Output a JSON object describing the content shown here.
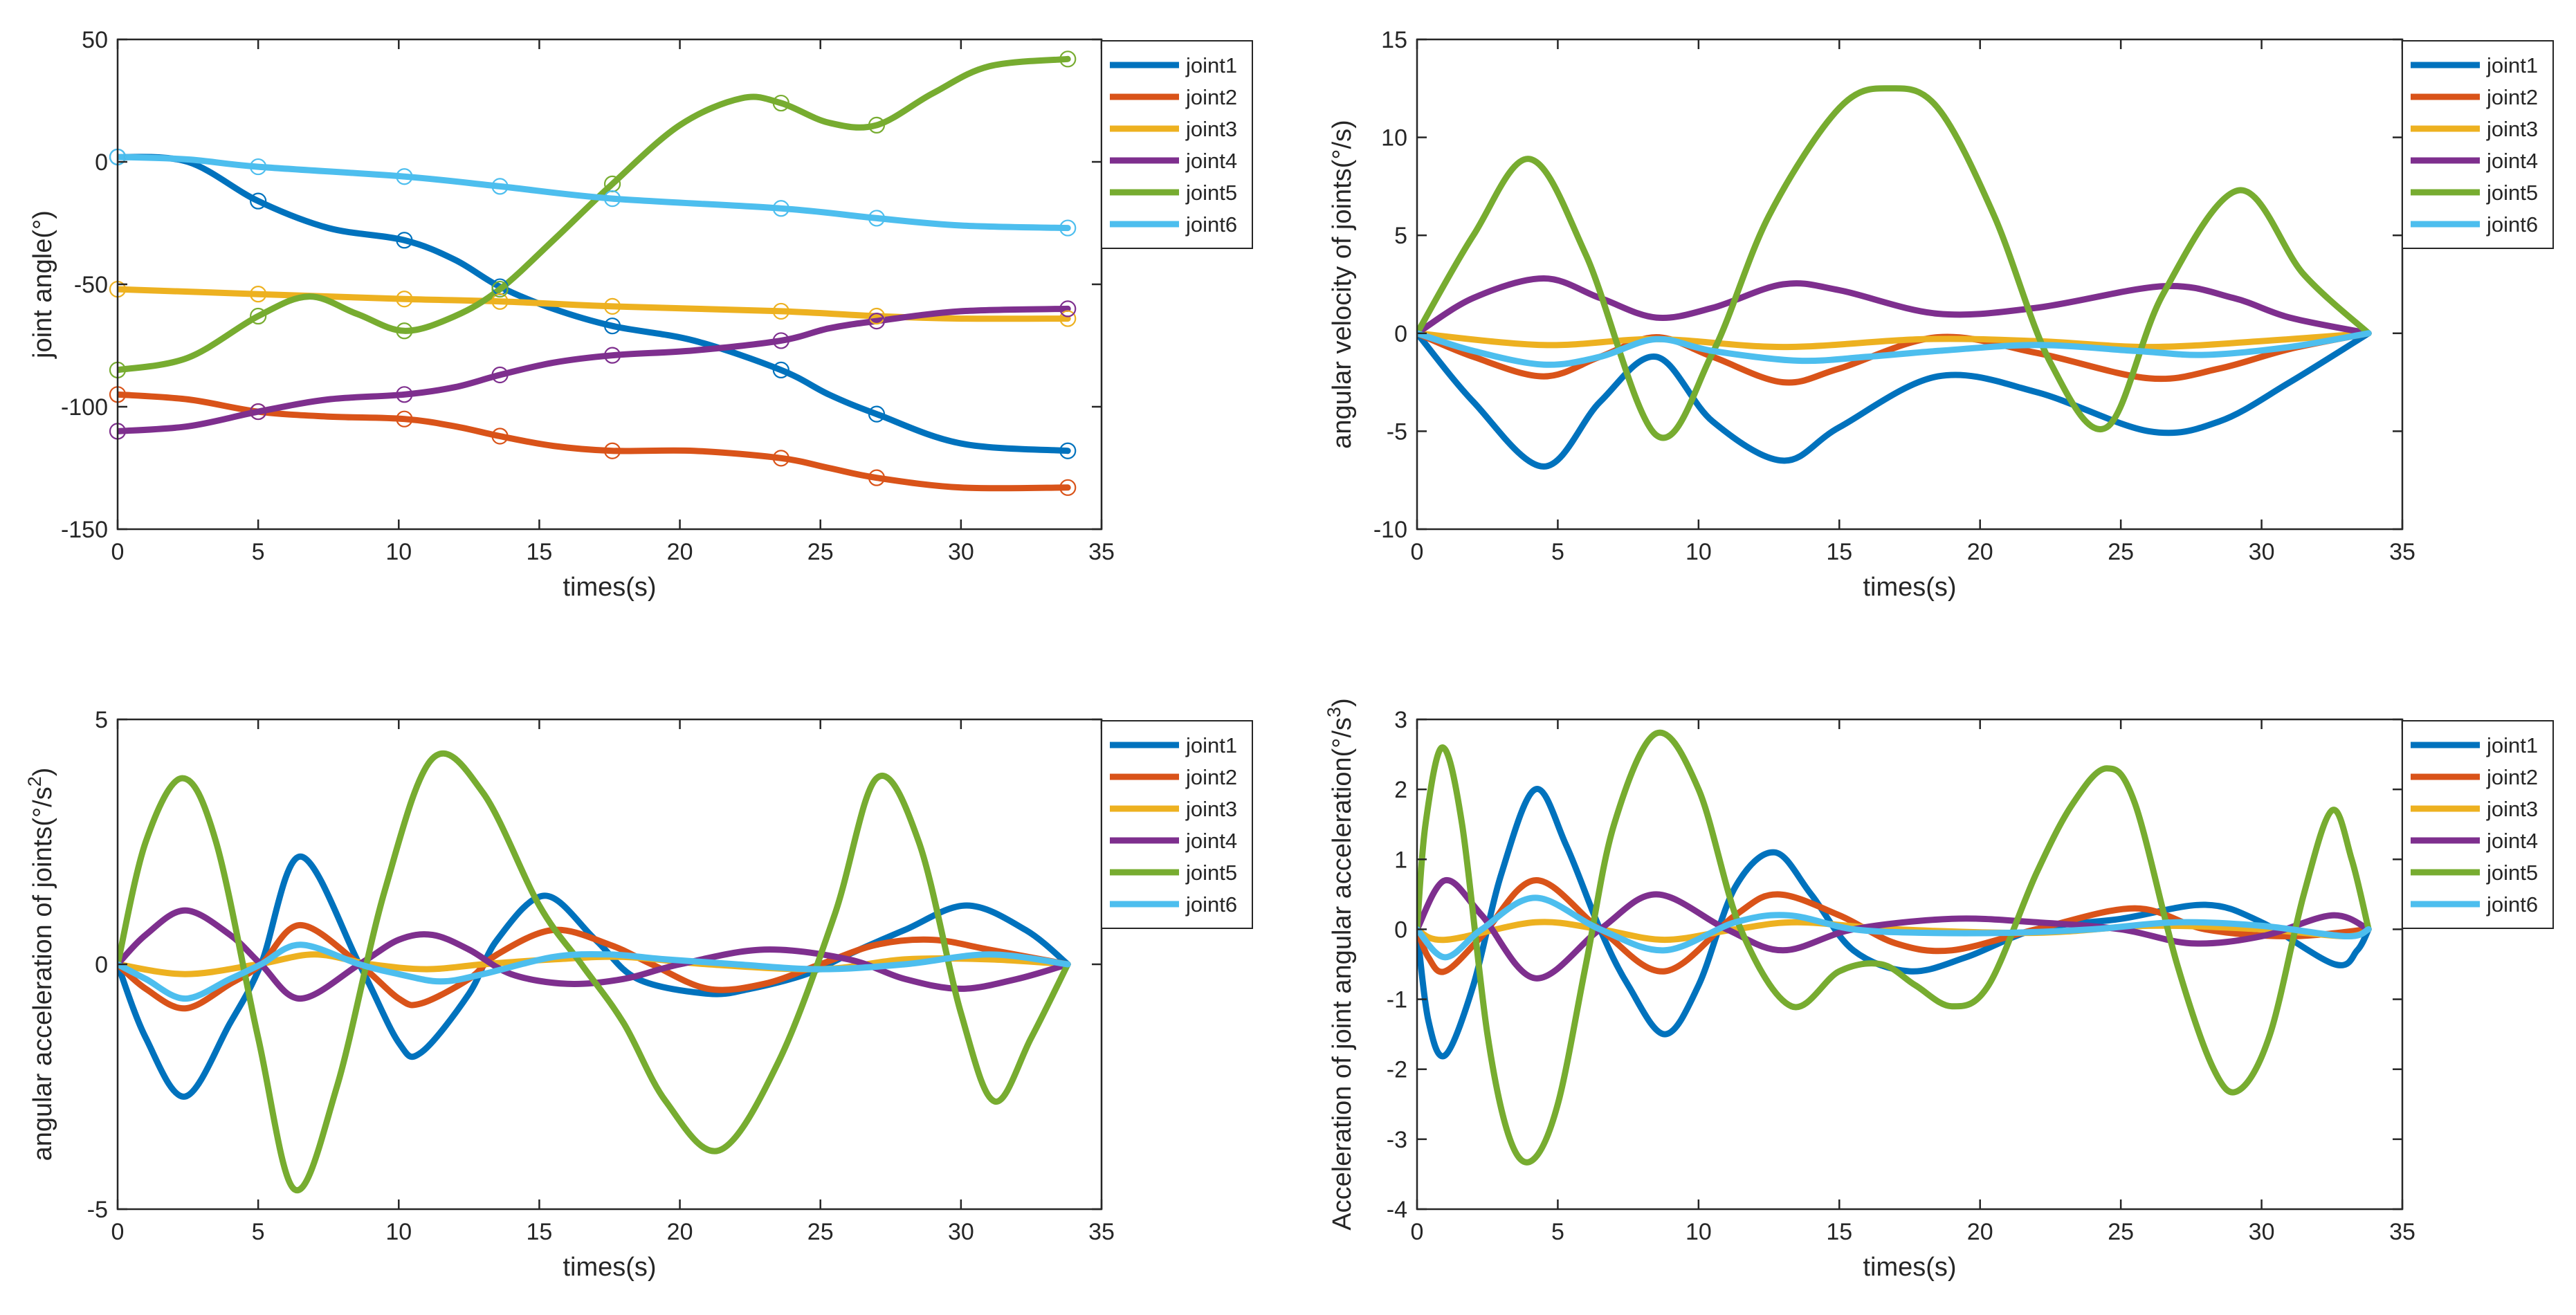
{
  "series_colors": {
    "joint1": "#0072BD",
    "joint2": "#D95319",
    "joint3": "#EDB120",
    "joint4": "#7E2F8E",
    "joint5": "#77AC30",
    "joint6": "#4DBEEE"
  },
  "chart_data": [
    {
      "type": "line",
      "xlabel": "times(s)",
      "ylabel": "joint angle(°)",
      "ylabel_sup": "",
      "ylabel_post": "",
      "xlim": [
        0,
        35
      ],
      "ylim": [
        -150,
        50
      ],
      "xticks": [
        0,
        5,
        10,
        15,
        20,
        25,
        30,
        35
      ],
      "yticks": [
        -150,
        -100,
        -50,
        0,
        50
      ],
      "legend": "top-right",
      "markers": "circle",
      "knots": [
        0,
        5,
        10.2,
        13.6,
        17.6,
        23.6,
        27,
        33.8
      ],
      "series": [
        {
          "name": "joint1",
          "x": [
            0,
            2.5,
            5,
            7.5,
            10.2,
            12,
            13.6,
            15.5,
            17.6,
            20.5,
            23.6,
            25.3,
            27,
            30,
            33.8
          ],
          "values": [
            2,
            0,
            -16,
            -27,
            -32,
            -40,
            -51,
            -60,
            -67,
            -73,
            -85,
            -95,
            -103,
            -115,
            -118
          ]
        },
        {
          "name": "joint2",
          "x": [
            0,
            2.5,
            5,
            7.5,
            10.2,
            12,
            13.6,
            15.5,
            17.6,
            20.5,
            23.6,
            25.3,
            27,
            30,
            33.8
          ],
          "values": [
            -95,
            -97,
            -102,
            -104,
            -105,
            -108,
            -112,
            -116,
            -118,
            -118,
            -121,
            -125,
            -129,
            -133,
            -133
          ]
        },
        {
          "name": "joint3",
          "x": [
            0,
            5,
            10.2,
            13.6,
            17.6,
            23.6,
            27,
            30,
            33.8
          ],
          "values": [
            -52,
            -54,
            -56,
            -57,
            -59,
            -61,
            -63,
            -64,
            -64
          ]
        },
        {
          "name": "joint4",
          "x": [
            0,
            2.5,
            5,
            7.5,
            10.2,
            12,
            13.6,
            15.5,
            17.6,
            20.5,
            23.6,
            25.3,
            27,
            30,
            33.8
          ],
          "values": [
            -110,
            -108,
            -102,
            -97,
            -95,
            -92,
            -87,
            -82,
            -79,
            -77,
            -73,
            -68,
            -65,
            -61,
            -60
          ]
        },
        {
          "name": "joint5",
          "x": [
            0,
            2.5,
            5,
            6.8,
            8.5,
            10.2,
            12,
            13.6,
            15.5,
            17.6,
            20,
            22.2,
            23.6,
            25.3,
            27,
            29,
            31,
            33.8
          ],
          "values": [
            -85,
            -80,
            -63,
            -55,
            -62,
            -69,
            -63,
            -52,
            -32,
            -9,
            15,
            26,
            24,
            16,
            15,
            28,
            39,
            42
          ]
        },
        {
          "name": "joint6",
          "x": [
            0,
            2.5,
            5,
            10.2,
            13.6,
            17.6,
            23.6,
            27,
            30,
            33.8
          ],
          "values": [
            2,
            1,
            -2,
            -6,
            -10,
            -15,
            -19,
            -23,
            -26,
            -27
          ]
        }
      ]
    },
    {
      "type": "line",
      "xlabel": "times(s)",
      "ylabel": "angular velocity of joints(°/s)",
      "ylabel_sup": "",
      "ylabel_post": "",
      "xlim": [
        0,
        35
      ],
      "ylim": [
        -10,
        15
      ],
      "xticks": [
        0,
        5,
        10,
        15,
        20,
        25,
        30,
        35
      ],
      "yticks": [
        -10,
        -5,
        0,
        5,
        10,
        15
      ],
      "legend": "top-right",
      "series": [
        {
          "name": "joint1",
          "x": [
            0,
            2,
            4.5,
            6.5,
            8.5,
            10.5,
            13,
            15,
            18.5,
            22,
            26,
            28.5,
            31,
            33.8
          ],
          "values": [
            0,
            -3.5,
            -6.8,
            -3.5,
            -1.2,
            -4.5,
            -6.5,
            -4.8,
            -2.2,
            -3,
            -5,
            -4.5,
            -2.5,
            0
          ]
        },
        {
          "name": "joint2",
          "x": [
            0,
            2,
            4.5,
            6.5,
            8.5,
            10.5,
            13,
            15,
            18.5,
            22,
            26,
            28.5,
            31,
            33.8
          ],
          "values": [
            0,
            -1.2,
            -2.2,
            -1.2,
            -0.2,
            -1.2,
            -2.5,
            -1.8,
            -0.2,
            -1,
            -2.3,
            -1.8,
            -0.8,
            0
          ]
        },
        {
          "name": "joint3",
          "x": [
            0,
            4.5,
            8.5,
            13,
            18,
            22,
            26,
            30,
            33.8
          ],
          "values": [
            0,
            -0.6,
            -0.3,
            -0.7,
            -0.3,
            -0.4,
            -0.7,
            -0.4,
            0
          ]
        },
        {
          "name": "joint4",
          "x": [
            0,
            2,
            4.5,
            6.5,
            8.5,
            10.5,
            13,
            15,
            18.5,
            22,
            26.5,
            29,
            31,
            33.8
          ],
          "values": [
            0,
            1.8,
            2.8,
            1.8,
            0.8,
            1.3,
            2.5,
            2.2,
            1,
            1.3,
            2.4,
            1.8,
            0.8,
            0
          ]
        },
        {
          "name": "joint5",
          "x": [
            0,
            2,
            4,
            6,
            8.5,
            10.5,
            12.5,
            15,
            16.8,
            18.5,
            20.5,
            22.5,
            24.5,
            26.5,
            29.2,
            31.5,
            33.8
          ],
          "values": [
            0,
            5,
            8.9,
            4,
            -5.2,
            -1,
            6,
            11.5,
            12.5,
            11.5,
            6,
            -1.5,
            -4.8,
            2,
            7.3,
            3,
            0
          ]
        },
        {
          "name": "joint6",
          "x": [
            0,
            2,
            4.5,
            6.5,
            8.5,
            10.5,
            13.5,
            16,
            18.5,
            22,
            25.5,
            28,
            31,
            33.8
          ],
          "values": [
            0,
            -0.9,
            -1.6,
            -1.2,
            -0.3,
            -0.9,
            -1.4,
            -1.2,
            -0.9,
            -0.6,
            -0.9,
            -1.1,
            -0.7,
            0
          ]
        }
      ]
    },
    {
      "type": "line",
      "xlabel": "times(s)",
      "ylabel": "angular acceleration of joints(°/s",
      "ylabel_sup": "2",
      "ylabel_post": ")",
      "xlim": [
        0,
        35
      ],
      "ylim": [
        -5,
        5
      ],
      "xticks": [
        0,
        5,
        10,
        15,
        20,
        25,
        30,
        35
      ],
      "yticks": [
        -5,
        0,
        5
      ],
      "legend": "top-right",
      "series": [
        {
          "name": "joint1",
          "x": [
            0,
            1,
            2.4,
            4,
            5.1,
            6.5,
            8.6,
            10,
            10.8,
            12.5,
            13.5,
            15.2,
            17,
            18.5,
            21,
            22.5,
            24.5,
            26,
            28,
            30.2,
            32.3,
            33.8
          ],
          "values": [
            0,
            -1.5,
            -2.7,
            -1.2,
            0,
            2.2,
            0,
            -1.6,
            -1.8,
            -0.6,
            0.5,
            1.4,
            0.5,
            -0.3,
            -0.6,
            -0.5,
            -0.2,
            0.2,
            0.7,
            1.2,
            0.7,
            0
          ]
        },
        {
          "name": "joint2",
          "x": [
            0,
            1,
            2.4,
            4,
            5.1,
            6.5,
            8.6,
            10,
            10.8,
            12.5,
            13.5,
            15.5,
            17.5,
            19,
            21,
            23,
            25,
            27,
            29,
            31,
            33.8
          ],
          "values": [
            0,
            -0.5,
            -0.9,
            -0.4,
            0,
            0.8,
            0,
            -0.7,
            -0.8,
            -0.3,
            0.2,
            0.7,
            0.4,
            0,
            -0.5,
            -0.4,
            0,
            0.4,
            0.5,
            0.3,
            0
          ]
        },
        {
          "name": "joint3",
          "x": [
            0,
            2.4,
            5,
            7,
            9,
            11,
            13,
            15.5,
            18,
            21,
            25,
            28,
            31,
            33.8
          ],
          "values": [
            0,
            -0.2,
            0,
            0.2,
            0,
            -0.1,
            0,
            0.1,
            0.15,
            0,
            -0.1,
            0.1,
            0.1,
            0
          ]
        },
        {
          "name": "joint4",
          "x": [
            0,
            1,
            2.4,
            4,
            5.1,
            6.5,
            8.6,
            10,
            11.2,
            12.5,
            14,
            16,
            18,
            20,
            23,
            26,
            28,
            30,
            32,
            33.8
          ],
          "values": [
            0,
            0.6,
            1.1,
            0.6,
            0,
            -0.7,
            0,
            0.5,
            0.6,
            0.3,
            -0.2,
            -0.4,
            -0.3,
            0,
            0.3,
            0.1,
            -0.3,
            -0.5,
            -0.3,
            0
          ]
        },
        {
          "name": "joint5",
          "x": [
            0,
            1,
            2.3,
            3.5,
            5,
            6.3,
            7.8,
            9.5,
            11.2,
            13,
            15,
            16.5,
            18,
            19.5,
            21.4,
            23.5,
            25.5,
            27,
            28.5,
            30,
            31.2,
            32.5,
            33.8
          ],
          "values": [
            0,
            2.5,
            3.8,
            2.5,
            -1.5,
            -4.6,
            -2.5,
            1.5,
            4.2,
            3.5,
            1.2,
            0,
            -1.2,
            -2.8,
            -3.8,
            -2,
            1,
            3.8,
            2.5,
            -1,
            -2.8,
            -1.5,
            0
          ]
        },
        {
          "name": "joint6",
          "x": [
            0,
            1,
            2.4,
            4,
            5.1,
            6.5,
            8.6,
            10,
            11.5,
            13,
            15.5,
            17.5,
            19.5,
            22,
            25,
            28,
            31,
            33.8
          ],
          "values": [
            0,
            -0.3,
            -0.7,
            -0.3,
            0,
            0.4,
            0,
            -0.2,
            -0.35,
            -0.2,
            0.15,
            0.2,
            0.1,
            0,
            -0.1,
            0,
            0.2,
            0
          ]
        }
      ]
    },
    {
      "type": "line",
      "xlabel": "times(s)",
      "ylabel": "Acceleration of joint angular acceleration(°/s",
      "ylabel_sup": "3",
      "ylabel_post": ")",
      "xlim": [
        0,
        35
      ],
      "ylim": [
        -4,
        3
      ],
      "xticks": [
        0,
        5,
        10,
        15,
        20,
        25,
        30,
        35
      ],
      "yticks": [
        -4,
        -3,
        -2,
        -1,
        0,
        1,
        2,
        3
      ],
      "legend": "top-right",
      "series": [
        {
          "name": "joint1",
          "x": [
            0,
            0.4,
            1,
            2,
            3,
            4.2,
            5.3,
            6.5,
            7.5,
            8.8,
            10,
            11.3,
            12.7,
            14,
            15.5,
            17.5,
            19.5,
            22,
            25,
            28,
            30,
            32.6,
            33.4,
            33.8
          ],
          "values": [
            0,
            -1.3,
            -1.8,
            -0.8,
            0.8,
            2,
            1.2,
            0,
            -0.8,
            -1.5,
            -0.8,
            0.6,
            1.1,
            0.5,
            -0.3,
            -0.6,
            -0.4,
            0,
            0.15,
            0.35,
            0.1,
            -0.5,
            -0.3,
            0
          ]
        },
        {
          "name": "joint2",
          "x": [
            0,
            0.4,
            1,
            2.3,
            4.2,
            6.5,
            8.8,
            11.3,
            12.8,
            15,
            17,
            19,
            22,
            25.5,
            28,
            31,
            33.8
          ],
          "values": [
            0,
            -0.4,
            -0.6,
            -0.1,
            0.7,
            0,
            -0.6,
            0.2,
            0.5,
            0.2,
            -0.2,
            -0.3,
            0,
            0.3,
            0,
            -0.1,
            0
          ]
        },
        {
          "name": "joint3",
          "x": [
            0,
            1,
            4.2,
            6.5,
            8.8,
            11.3,
            13.5,
            17,
            22,
            26,
            30,
            33,
            33.8
          ],
          "values": [
            0,
            -0.15,
            0.1,
            0,
            -0.15,
            0,
            0.1,
            0,
            -0.05,
            0.05,
            0,
            -0.1,
            0
          ]
        },
        {
          "name": "joint4",
          "x": [
            0,
            1,
            2.3,
            4.2,
            6.5,
            8.5,
            11,
            13,
            15.5,
            19,
            22,
            25,
            27.5,
            30,
            32.5,
            33.8
          ],
          "values": [
            0,
            0.7,
            0.2,
            -0.7,
            0,
            0.5,
            0,
            -0.3,
            0,
            0.15,
            0.1,
            0,
            -0.2,
            -0.1,
            0.2,
            0
          ]
        },
        {
          "name": "joint5",
          "x": [
            0,
            0.3,
            0.9,
            1.6,
            2.5,
            3.3,
            4.1,
            5,
            6,
            7,
            8.5,
            10,
            11.5,
            13.3,
            15,
            16.5,
            17.7,
            19,
            20.3,
            22,
            23.3,
            24.5,
            25.5,
            27,
            28.3,
            29.2,
            30.3,
            31.5,
            32.5,
            33.2,
            33.8
          ],
          "values": [
            0,
            1.5,
            2.6,
            1.5,
            -1.5,
            -3,
            -3.3,
            -2.5,
            -0.5,
            1.5,
            2.8,
            2,
            0,
            -1.1,
            -0.6,
            -0.5,
            -0.8,
            -1.1,
            -0.8,
            0.8,
            1.8,
            2.3,
            1.8,
            -0.5,
            -2,
            -2.3,
            -1.5,
            0.5,
            1.7,
            1,
            0
          ]
        },
        {
          "name": "joint6",
          "x": [
            0,
            1,
            2.3,
            4.2,
            6.5,
            8.8,
            11.3,
            13.2,
            15.5,
            18,
            21,
            24,
            27,
            30,
            33,
            33.8
          ],
          "values": [
            0,
            -0.4,
            0,
            0.45,
            0,
            -0.3,
            0.1,
            0.2,
            0,
            -0.05,
            -0.05,
            0,
            0.1,
            0.05,
            -0.1,
            0
          ]
        }
      ]
    }
  ]
}
